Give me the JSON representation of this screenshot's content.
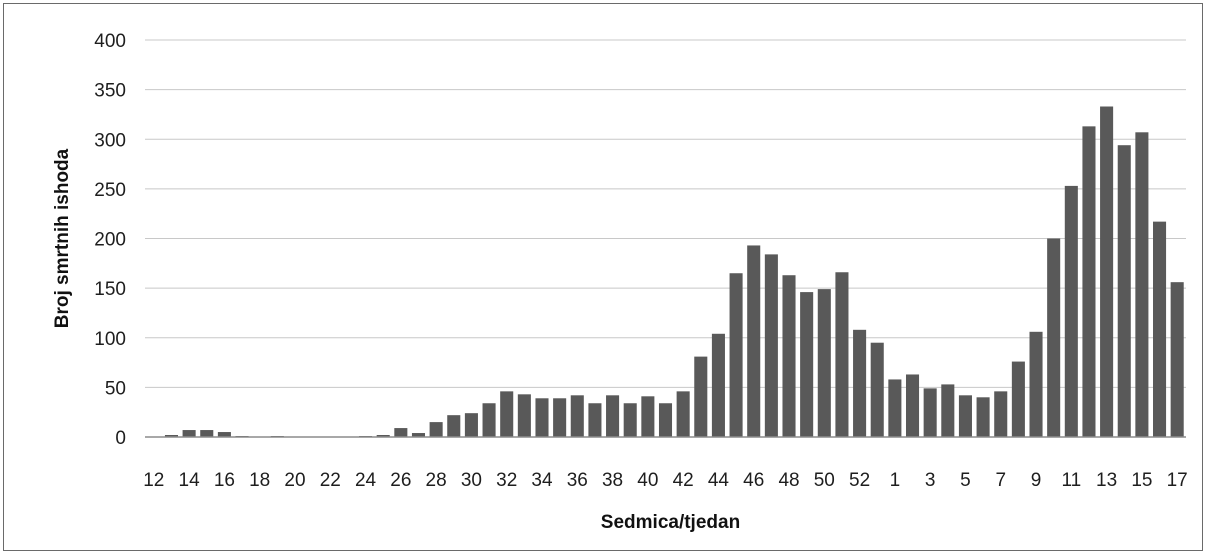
{
  "chart_data": {
    "type": "bar",
    "title": "",
    "xlabel": "Sedmica/tjedan",
    "ylabel": "Broj smrtnih ishoda",
    "ylim": [
      0,
      400
    ],
    "yticks": [
      "0",
      "50",
      "100",
      "150",
      "200",
      "250",
      "300",
      "350",
      "400"
    ],
    "grid": true,
    "legend": "none",
    "colors": {
      "bar": "#595959",
      "grid": "#c8c8c8",
      "axis": "#8c8c8c",
      "text": "#1e1e1e"
    },
    "categories": [
      "12",
      "13",
      "14",
      "15",
      "16",
      "17",
      "18",
      "19",
      "20",
      "21",
      "22",
      "23",
      "24",
      "25",
      "26",
      "27",
      "28",
      "29",
      "30",
      "31",
      "32",
      "33",
      "34",
      "35",
      "36",
      "37",
      "38",
      "39",
      "40",
      "41",
      "42",
      "43",
      "44",
      "45",
      "46",
      "47",
      "48",
      "49",
      "50",
      "51",
      "52",
      "53",
      "1",
      "2",
      "3",
      "4",
      "5",
      "6",
      "7",
      "8",
      "9",
      "10",
      "11",
      "12",
      "13",
      "14",
      "15",
      "16",
      "17"
    ],
    "tick_labels": [
      "12",
      "14",
      "16",
      "18",
      "20",
      "22",
      "24",
      "26",
      "28",
      "30",
      "32",
      "34",
      "36",
      "38",
      "40",
      "42",
      "44",
      "46",
      "48",
      "50",
      "52",
      "1",
      "3",
      "5",
      "7",
      "9",
      "11",
      "13",
      "15",
      "17"
    ],
    "values": [
      0,
      2,
      7,
      7,
      5,
      1,
      0,
      1,
      0,
      0,
      0,
      0,
      1,
      2,
      9,
      4,
      15,
      22,
      24,
      34,
      46,
      43,
      39,
      39,
      42,
      34,
      42,
      34,
      41,
      34,
      46,
      81,
      104,
      165,
      193,
      184,
      163,
      146,
      149,
      166,
      108,
      95,
      58,
      63,
      49,
      53,
      42,
      40,
      46,
      76,
      106,
      200,
      253,
      313,
      333,
      294,
      307,
      217,
      156
    ]
  }
}
